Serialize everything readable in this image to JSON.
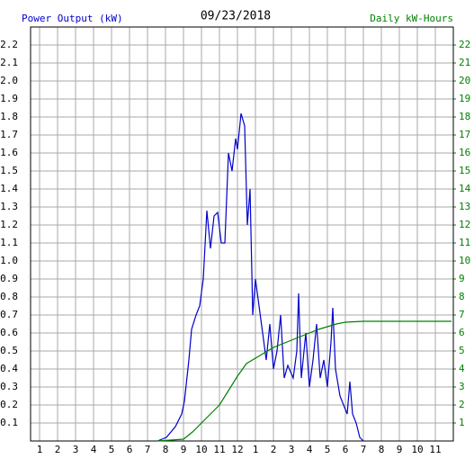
{
  "chart_data": {
    "type": "line",
    "title": "09/23/2018",
    "y_label": "Power Output (kW)",
    "y2_label": "Daily kW-Hours",
    "xlim": [
      0.5,
      24
    ],
    "xticks": [
      1,
      2,
      3,
      4,
      5,
      6,
      7,
      8,
      9,
      10,
      11,
      12,
      {
        "value": 13,
        "label": "1"
      },
      {
        "value": 14,
        "label": "2"
      },
      {
        "value": 15,
        "label": "3"
      },
      {
        "value": 16,
        "label": "4"
      },
      {
        "value": 17,
        "label": "5"
      },
      {
        "value": 18,
        "label": "6"
      },
      {
        "value": 19,
        "label": "7"
      },
      {
        "value": 20,
        "label": "8"
      },
      {
        "value": 21,
        "label": "9"
      },
      {
        "value": 22,
        "label": "10"
      },
      {
        "value": 23,
        "label": "11"
      }
    ],
    "ylim": [
      0,
      2.3
    ],
    "yticks": [
      0.1,
      0.2,
      0.3,
      0.4,
      0.5,
      0.6,
      0.7,
      0.8,
      0.9,
      {
        "value": 1,
        "label": "1.0"
      },
      1.1,
      1.2,
      1.3,
      1.4,
      1.5,
      1.6,
      1.7,
      1.8,
      1.9,
      {
        "value": 2,
        "label": "2.0"
      },
      2.1,
      2.2
    ],
    "y2lim": [
      0,
      23
    ],
    "y2ticks": [
      1,
      2,
      3,
      4,
      5,
      6,
      7,
      8,
      9,
      10,
      11,
      12,
      13,
      14,
      15,
      16,
      17,
      18,
      19,
      20,
      21,
      22
    ],
    "grid": true,
    "series": [
      {
        "name": "Power Output (kW)",
        "color": "#0000cc",
        "x": [
          7.55,
          8.05,
          8.55,
          8.9,
          9.05,
          9.3,
          9.45,
          9.7,
          9.9,
          10.1,
          10.3,
          10.5,
          10.7,
          10.9,
          11.1,
          11.3,
          11.5,
          11.7,
          11.9,
          12,
          12.2,
          12.4,
          12.55,
          12.7,
          12.85,
          13,
          13.2,
          13.4,
          13.6,
          13.8,
          14,
          14.2,
          14.4,
          14.6,
          14.8,
          15.1,
          15.3,
          15.4,
          15.55,
          15.8,
          16,
          16.2,
          16.4,
          16.6,
          16.8,
          17,
          17.2,
          17.3,
          17.45,
          17.7,
          17.9,
          18.1,
          18.25,
          18.4,
          18.6,
          18.8,
          19
        ],
        "values": [
          0,
          0.02,
          0.08,
          0.15,
          0.22,
          0.45,
          0.62,
          0.7,
          0.75,
          0.9,
          1.28,
          1.07,
          1.25,
          1.27,
          1.1,
          1.1,
          1.6,
          1.5,
          1.68,
          1.62,
          1.82,
          1.75,
          1.2,
          1.4,
          0.7,
          0.9,
          0.75,
          0.6,
          0.45,
          0.65,
          0.4,
          0.5,
          0.7,
          0.35,
          0.42,
          0.35,
          0.5,
          0.82,
          0.35,
          0.6,
          0.3,
          0.45,
          0.65,
          0.35,
          0.45,
          0.3,
          0.55,
          0.74,
          0.4,
          0.25,
          0.2,
          0.15,
          0.33,
          0.15,
          0.1,
          0.02,
          0
        ]
      },
      {
        "name": "Daily kW-Hours",
        "color": "#008000",
        "axis": "y2",
        "x": [
          7.55,
          9,
          9.5,
          10,
          10.5,
          11,
          11.5,
          12,
          12.5,
          13,
          13.5,
          14,
          14.5,
          15,
          15.5,
          16,
          16.5,
          17,
          17.5,
          18,
          19,
          23.9
        ],
        "values": [
          0,
          0.1,
          0.5,
          1,
          1.5,
          2,
          2.8,
          3.6,
          4.3,
          4.6,
          4.9,
          5.2,
          5.4,
          5.6,
          5.8,
          6,
          6.2,
          6.35,
          6.5,
          6.6,
          6.65,
          6.65
        ]
      }
    ]
  }
}
